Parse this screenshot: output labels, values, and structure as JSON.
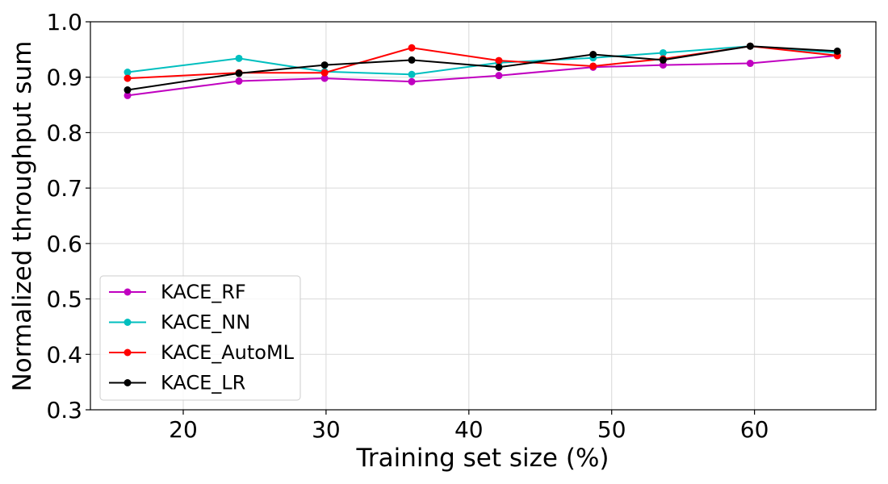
{
  "chart_data": {
    "type": "line",
    "title": "",
    "xlabel": "Training set size (%)",
    "ylabel": "Normalized throughput sum",
    "xlim": [
      13.5,
      68.5
    ],
    "ylim": [
      0.3,
      1.0
    ],
    "x_ticks": [
      20,
      30,
      40,
      50,
      60
    ],
    "x_tick_labels": [
      "20",
      "30",
      "40",
      "50",
      "60"
    ],
    "y_ticks": [
      0.3,
      0.4,
      0.5,
      0.6,
      0.7,
      0.8,
      0.9,
      1.0
    ],
    "y_tick_labels": [
      "0.3",
      "0.4",
      "0.5",
      "0.6",
      "0.7",
      "0.8",
      "0.9",
      "1.0"
    ],
    "grid": true,
    "legend_position": "lower-left",
    "x": [
      16.1,
      23.9,
      29.9,
      36.0,
      42.1,
      48.7,
      53.6,
      59.7,
      65.8
    ],
    "series": [
      {
        "name": "KACE_RF",
        "color": "#c000c0",
        "values": [
          0.867,
          0.893,
          0.898,
          0.892,
          0.903,
          0.918,
          0.922,
          0.925,
          0.939
        ]
      },
      {
        "name": "KACE_NN",
        "color": "#00bfbf",
        "values": [
          0.909,
          0.934,
          0.91,
          0.905,
          0.926,
          0.935,
          0.944,
          0.956,
          0.944
        ]
      },
      {
        "name": "KACE_AutoML",
        "color": "#ff0000",
        "values": [
          0.898,
          0.908,
          0.908,
          0.953,
          0.93,
          0.92,
          0.933,
          0.956,
          0.939
        ]
      },
      {
        "name": "KACE_LR",
        "color": "#000000",
        "values": [
          0.877,
          0.907,
          0.922,
          0.931,
          0.918,
          0.941,
          0.931,
          0.956,
          0.947
        ]
      }
    ]
  }
}
